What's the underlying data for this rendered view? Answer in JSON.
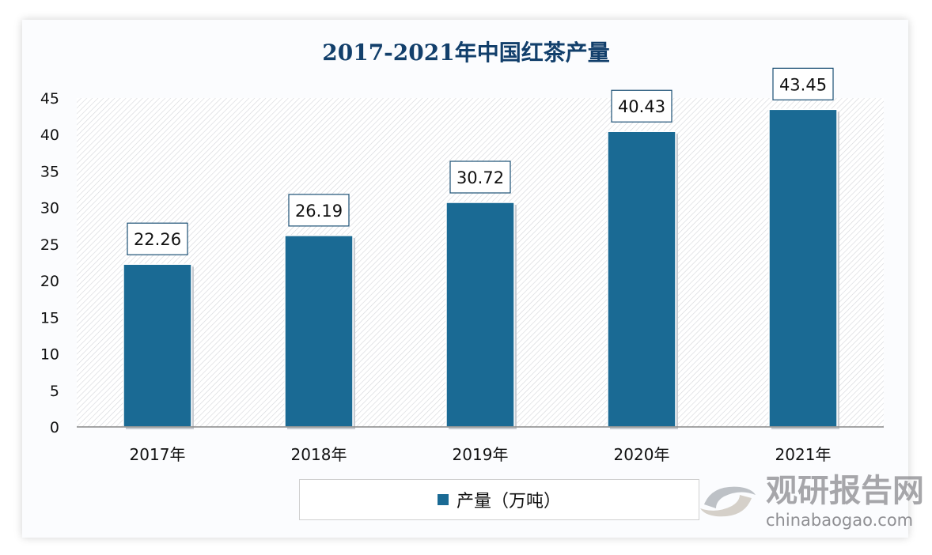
{
  "chart_data": {
    "type": "bar",
    "title": "2017-2021年中国红茶产量",
    "categories": [
      "2017年",
      "2018年",
      "2019年",
      "2020年",
      "2021年"
    ],
    "series": [
      {
        "name": "产量（万吨）",
        "values": [
          22.26,
          26.19,
          30.72,
          40.43,
          43.45
        ]
      }
    ],
    "data_labels": [
      "22.26",
      "26.19",
      "30.72",
      "40.43",
      "43.45"
    ],
    "ylim": [
      0,
      45
    ],
    "yticks": [
      0,
      5,
      10,
      15,
      20,
      25,
      30,
      35,
      40,
      45
    ],
    "grid": false,
    "legend_position": "bottom",
    "bar_color": "#1a6a94",
    "title_color": "#123f6b"
  },
  "watermark": {
    "name": "观研报告网",
    "url": "chinabaogao.com"
  }
}
